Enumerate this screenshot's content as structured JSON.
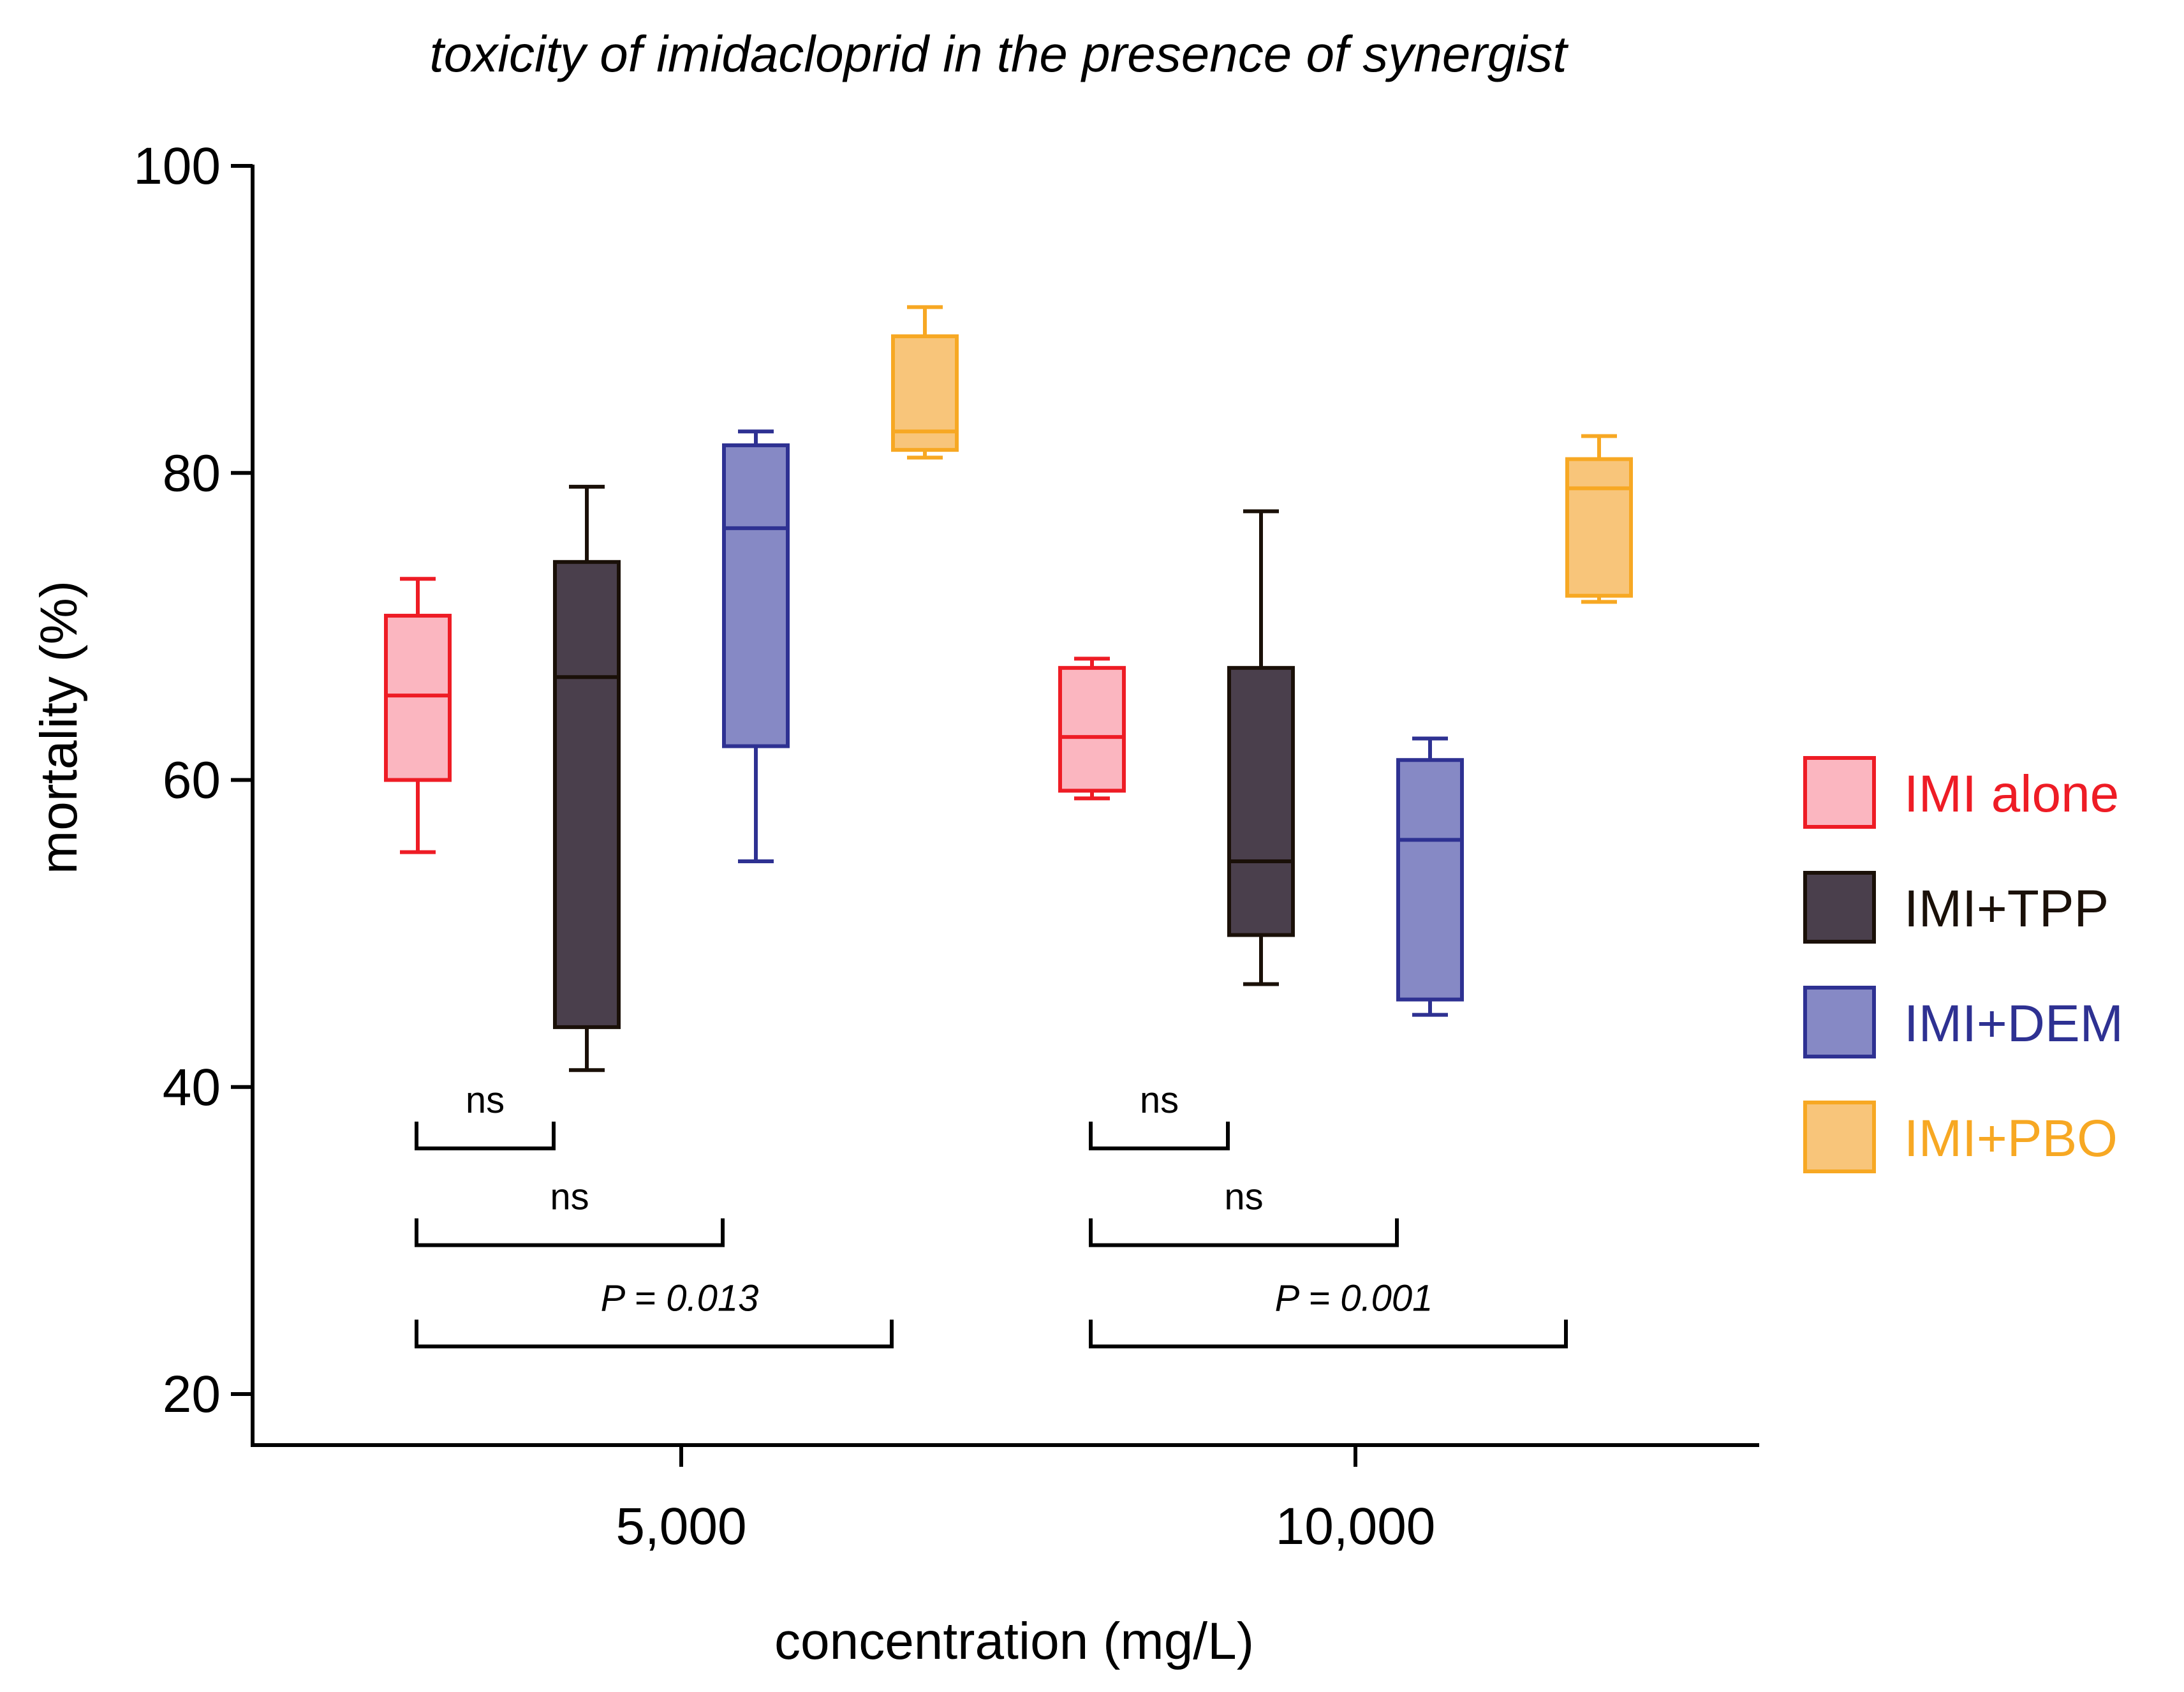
{
  "chart_data": {
    "type": "box",
    "title": "toxicity of imidacloprid in the presence of synergist",
    "xlabel": "concentration (mg/L)",
    "ylabel": "mortality (%)",
    "ylim": [
      20,
      100
    ],
    "y_ticks": [
      "20",
      "40",
      "60",
      "80",
      "100"
    ],
    "categories": [
      "5,000",
      "10,000"
    ],
    "series": [
      {
        "name": "IMI alone",
        "stroke": "#ee1c25",
        "fill": "#fbb6c0",
        "boxes": [
          {
            "category": "5,000",
            "min": 55.3,
            "q1": 60.0,
            "median": 65.5,
            "q3": 70.7,
            "max": 73.1
          },
          {
            "category": "10,000",
            "min": 58.8,
            "q1": 59.3,
            "median": 62.8,
            "q3": 67.3,
            "max": 67.9
          }
        ]
      },
      {
        "name": "IMI+TPP",
        "stroke": "#1a1008",
        "fill": "#4a3f4c",
        "boxes": [
          {
            "category": "5,000",
            "min": 41.1,
            "q1": 43.9,
            "median": 66.7,
            "q3": 74.2,
            "max": 79.1
          },
          {
            "category": "10,000",
            "min": 46.7,
            "q1": 49.9,
            "median": 54.7,
            "q3": 67.3,
            "max": 77.5
          }
        ]
      },
      {
        "name": "IMI+DEM",
        "stroke": "#2e3192",
        "fill": "#8689c5",
        "boxes": [
          {
            "category": "5,000",
            "min": 54.7,
            "q1": 62.2,
            "median": 76.4,
            "q3": 81.8,
            "max": 82.7
          },
          {
            "category": "10,000",
            "min": 44.7,
            "q1": 45.7,
            "median": 56.1,
            "q3": 61.3,
            "max": 62.7
          }
        ]
      },
      {
        "name": "IMI+PBO",
        "stroke": "#f7a823",
        "fill": "#f8c57a",
        "boxes": [
          {
            "category": "5,000",
            "min": 81.0,
            "q1": 81.5,
            "median": 82.7,
            "q3": 88.9,
            "max": 90.8
          },
          {
            "category": "10,000",
            "min": 71.6,
            "q1": 72.0,
            "median": 79.0,
            "q3": 80.9,
            "max": 82.4
          }
        ]
      }
    ],
    "annotations": [
      {
        "category": "5,000",
        "from": "IMI alone",
        "to": "IMI+TPP",
        "level": 36.0,
        "label": "ns",
        "italic": false
      },
      {
        "category": "5,000",
        "from": "IMI alone",
        "to": "IMI+DEM",
        "level": 29.7,
        "label": "ns",
        "italic": false
      },
      {
        "category": "5,000",
        "from": "IMI alone",
        "to": "IMI+PBO",
        "level": 23.1,
        "label": "P = 0.013",
        "italic": true
      },
      {
        "category": "10,000",
        "from": "IMI alone",
        "to": "IMI+TPP",
        "level": 36.0,
        "label": "ns",
        "italic": false
      },
      {
        "category": "10,000",
        "from": "IMI alone",
        "to": "IMI+DEM",
        "level": 29.7,
        "label": "ns",
        "italic": false
      },
      {
        "category": "10,000",
        "from": "IMI alone",
        "to": "IMI+PBO",
        "level": 23.1,
        "label": "P = 0.001",
        "italic": true
      }
    ],
    "legend_position": "right"
  }
}
